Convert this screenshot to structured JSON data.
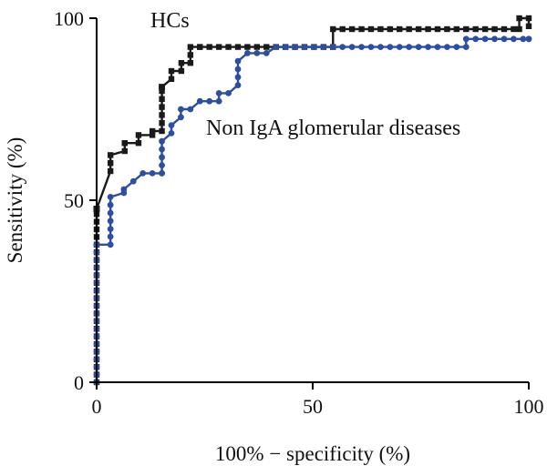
{
  "chart_data": {
    "type": "line",
    "xlabel": "100% − specificity (%)",
    "ylabel": "Sensitivity (%)",
    "xlim": [
      0,
      100
    ],
    "ylim": [
      0,
      100
    ],
    "xticks": [
      0,
      50,
      100
    ],
    "yticks": [
      0,
      50,
      100
    ],
    "grid": false,
    "series": [
      {
        "name": "HCs",
        "color": "#1a1a1a",
        "marker": "square",
        "x": [
          0,
          0,
          0,
          0,
          0,
          0,
          0,
          0,
          0,
          0,
          0,
          0,
          0,
          0,
          0,
          0,
          0,
          0,
          0,
          0,
          0,
          0,
          0,
          0,
          0,
          0,
          0,
          0,
          0,
          0,
          0,
          0,
          0,
          0,
          0,
          0,
          0,
          0,
          0,
          0,
          0,
          0,
          0,
          0,
          0,
          0,
          0,
          0,
          0,
          0,
          0,
          0,
          3.2,
          3.2,
          3.2,
          6.5,
          6.5,
          6.5,
          9.7,
          9.7,
          12.9,
          12.9,
          15.1,
          15.1,
          15.1,
          15.1,
          15.1,
          15.1,
          15.1,
          15.1,
          15.1,
          15.1,
          15.1,
          15.1,
          17.3,
          17.3,
          19.6,
          19.6,
          21.7,
          21.7,
          21.7,
          23.9,
          23.9,
          26.1,
          28.3,
          30.5,
          32.7,
          34.9,
          37.1,
          39.3,
          41.5,
          43.7,
          45.9,
          48.1,
          50.3,
          52.5,
          54.7,
          54.7,
          56.9,
          59.1,
          61.3,
          63.5,
          65.7,
          67.9,
          70.1,
          72.3,
          74.5,
          76.7,
          78.9,
          81.1,
          83.3,
          85.5,
          87.7,
          89.9,
          92.1,
          94.3,
          96.5,
          97.8,
          97.8,
          100,
          100
        ],
        "y": [
          0,
          2.1,
          4.2,
          6.3,
          8.4,
          10.5,
          12.6,
          14.7,
          16.8,
          18.9,
          21,
          23.1,
          25.2,
          27.3,
          29.4,
          31.5,
          33.6,
          35.7,
          37.8,
          39.9,
          42,
          44.1,
          46.2,
          47.6,
          47.6,
          47.6,
          47.6,
          47.6,
          47.6,
          47.6,
          47.6,
          47.6,
          47.6,
          47.6,
          47.6,
          47.6,
          47.6,
          47.6,
          47.6,
          47.6,
          47.6,
          47.6,
          47.6,
          47.6,
          47.6,
          47.6,
          47.6,
          47.6,
          47.6,
          47.6,
          47.6,
          47.6,
          58,
          60.2,
          62.4,
          63.5,
          65.7,
          65.7,
          65.7,
          67.9,
          67.9,
          69,
          69,
          71.2,
          73.4,
          75.6,
          77.8,
          80,
          81.1,
          81.1,
          81.1,
          81.1,
          81.1,
          81.1,
          83.3,
          85.5,
          85.5,
          87.7,
          87.7,
          89.9,
          92.1,
          92.1,
          92.1,
          92.1,
          92.1,
          92.1,
          92.1,
          92.1,
          92.1,
          92.1,
          92.1,
          92.1,
          92.1,
          92.1,
          92.1,
          92.1,
          92.1,
          97,
          97,
          97,
          97,
          97,
          97,
          97,
          97,
          97,
          97,
          97,
          97,
          97,
          97,
          97,
          97,
          97,
          97,
          97,
          97,
          97,
          100,
          100,
          97.8
        ]
      },
      {
        "name": "Non IgA glomerular diseases",
        "color": "#2e4fa0",
        "marker": "circle",
        "x": [
          0,
          0,
          0,
          0,
          0,
          0,
          0,
          0,
          0,
          0,
          0,
          0,
          0,
          0,
          0,
          0,
          0,
          0,
          0,
          0,
          0,
          0,
          0,
          0,
          0,
          3.2,
          3.2,
          3.2,
          3.2,
          3.2,
          3.2,
          3.2,
          6.3,
          6.3,
          8.5,
          10.7,
          12.9,
          15.1,
          15.1,
          15.1,
          15.1,
          15.1,
          15.1,
          17.3,
          17.3,
          19.5,
          19.5,
          21.7,
          23.9,
          26.1,
          28.3,
          28.3,
          30.5,
          32.7,
          32.7,
          32.7,
          32.7,
          34.9,
          37.1,
          39.3,
          41.5,
          43.7,
          45.9,
          48.1,
          50.3,
          52.5,
          54.7,
          56.9,
          59.1,
          61.3,
          63.5,
          65.7,
          67.9,
          70.1,
          72.3,
          74.5,
          76.7,
          78.9,
          81.1,
          83.3,
          85.5,
          85.5,
          87.7,
          89.9,
          92.1,
          94.3,
          96.5,
          98.7,
          100,
          100
        ],
        "y": [
          0,
          2.1,
          4.2,
          6.3,
          8.4,
          10.5,
          12.6,
          14.7,
          16.8,
          18.9,
          21,
          23.1,
          25.2,
          27.3,
          29.4,
          31.5,
          33.6,
          35.7,
          37.8,
          37.8,
          37.8,
          37.8,
          37.8,
          37.8,
          37.8,
          37.8,
          40,
          42.1,
          44.3,
          46.5,
          48.7,
          50.9,
          52,
          53,
          55.2,
          57.4,
          57.4,
          57.4,
          57.4,
          59.6,
          61.8,
          64,
          66.2,
          68.4,
          70.6,
          72.8,
          75,
          75,
          77.2,
          77.2,
          77.2,
          79.4,
          79.4,
          81.6,
          83.8,
          86,
          88.2,
          90.4,
          90.4,
          90.4,
          92.1,
          92.1,
          92.1,
          92.1,
          92.1,
          92.1,
          92.1,
          92.1,
          92.1,
          92.1,
          92.1,
          92.1,
          92.1,
          92.1,
          92.1,
          92.1,
          92.1,
          92.1,
          92.1,
          92.1,
          92.1,
          94.3,
          94.3,
          94.3,
          94.3,
          94.3,
          94.3,
          94.3,
          94.3,
          94.3
        ]
      }
    ],
    "annotations": [
      {
        "text": "HCs",
        "series": 0
      },
      {
        "text": "Non IgA glomerular diseases",
        "series": 1
      }
    ]
  }
}
